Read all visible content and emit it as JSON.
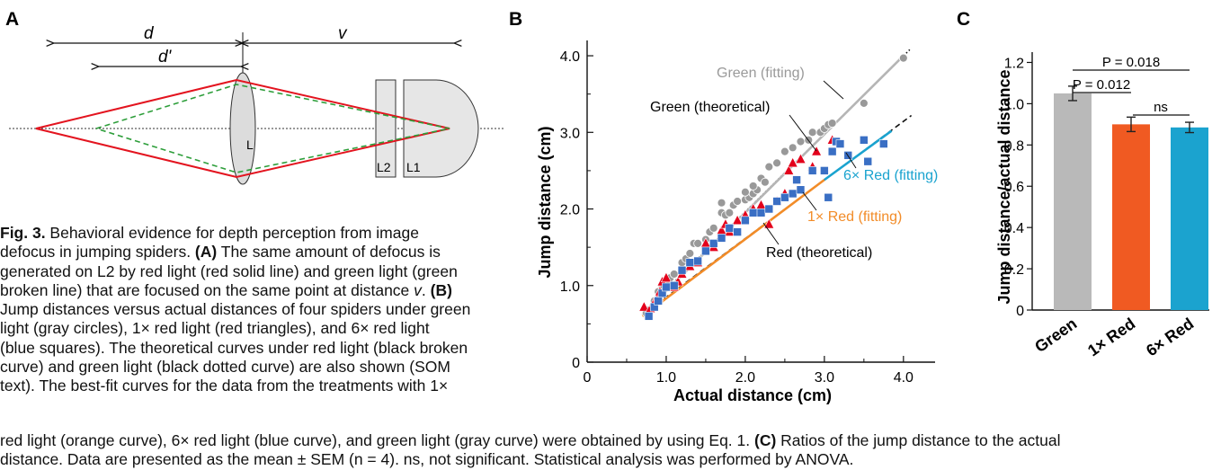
{
  "panels": {
    "a": {
      "letter": "A",
      "labels": {
        "d": "d",
        "d_prime": "d'",
        "v": "v",
        "lens_L": "L",
        "lens_L2": "L2",
        "lens_L1": "L1"
      }
    },
    "b": {
      "letter": "B",
      "annotations": {
        "green_fitting": "Green (fitting)",
        "green_theoretical": "Green (theoretical)",
        "red6_fitting": "6× Red (fitting)",
        "red1_fitting": "1× Red (fitting)",
        "red_theoretical": "Red (theoretical)"
      }
    },
    "c": {
      "letter": "C",
      "sig": {
        "p1": "P = 0.012",
        "p2": "P = 0.018",
        "ns": "ns"
      }
    }
  },
  "chart_data": [
    {
      "type": "scatter",
      "xlabel": "Actual distance (cm)",
      "ylabel": "Jump distance (cm)",
      "xlim": [
        0,
        4.4
      ],
      "ylim": [
        0,
        4.2
      ],
      "xticks": [
        "0",
        "1.0",
        "2.0",
        "3.0",
        "4.0"
      ],
      "yticks": [
        "0",
        "1.0",
        "2.0",
        "3.0",
        "4.0"
      ],
      "colors": {
        "green": "#999999",
        "red1": "#e3001b",
        "red6": "#3a6fc4",
        "theory": "#111111",
        "fit_gray": "#b5b5b5",
        "fit_orange": "#f28c28",
        "fit_blue": "#1aa3cf"
      },
      "series": [
        {
          "name": "gray circles",
          "marker": "circle",
          "color": "#999999",
          "points": [
            [
              0.75,
              0.64
            ],
            [
              0.85,
              0.8
            ],
            [
              0.9,
              0.92
            ],
            [
              0.95,
              1.0
            ],
            [
              1.0,
              1.05
            ],
            [
              1.05,
              1.1
            ],
            [
              1.1,
              1.15
            ],
            [
              1.2,
              1.3
            ],
            [
              1.25,
              1.35
            ],
            [
              1.3,
              1.42
            ],
            [
              1.35,
              1.55
            ],
            [
              1.4,
              1.55
            ],
            [
              1.5,
              1.6
            ],
            [
              1.55,
              1.7
            ],
            [
              1.6,
              1.75
            ],
            [
              1.7,
              1.95
            ],
            [
              1.75,
              1.92
            ],
            [
              1.8,
              1.95
            ],
            [
              1.7,
              2.08
            ],
            [
              1.85,
              2.05
            ],
            [
              1.9,
              2.1
            ],
            [
              2.0,
              2.12
            ],
            [
              2.05,
              2.15
            ],
            [
              2.0,
              2.22
            ],
            [
              2.1,
              2.2
            ],
            [
              2.15,
              2.25
            ],
            [
              2.1,
              2.3
            ],
            [
              2.2,
              2.4
            ],
            [
              2.25,
              2.35
            ],
            [
              2.3,
              2.55
            ],
            [
              2.4,
              2.6
            ],
            [
              2.5,
              2.75
            ],
            [
              2.6,
              2.8
            ],
            [
              2.7,
              2.88
            ],
            [
              2.8,
              2.9
            ],
            [
              2.85,
              3.0
            ],
            [
              2.95,
              3.0
            ],
            [
              3.0,
              3.05
            ],
            [
              3.05,
              3.1
            ],
            [
              3.1,
              3.12
            ],
            [
              3.5,
              3.38
            ],
            [
              4.0,
              3.97
            ]
          ]
        },
        {
          "name": "red triangles",
          "marker": "triangle",
          "color": "#e3001b",
          "points": [
            [
              0.72,
              0.72
            ],
            [
              0.8,
              0.7
            ],
            [
              0.85,
              0.78
            ],
            [
              0.9,
              0.85
            ],
            [
              0.92,
              0.92
            ],
            [
              0.95,
              1.05
            ],
            [
              1.0,
              1.1
            ],
            [
              1.1,
              0.98
            ],
            [
              1.15,
              1.05
            ],
            [
              1.2,
              1.15
            ],
            [
              1.3,
              1.25
            ],
            [
              1.4,
              1.3
            ],
            [
              1.5,
              1.55
            ],
            [
              1.6,
              1.5
            ],
            [
              1.7,
              1.72
            ],
            [
              1.75,
              1.8
            ],
            [
              1.8,
              1.7
            ],
            [
              1.9,
              1.85
            ],
            [
              2.0,
              1.92
            ],
            [
              2.1,
              2.0
            ],
            [
              2.2,
              2.05
            ],
            [
              2.3,
              1.8
            ],
            [
              2.4,
              2.1
            ],
            [
              2.5,
              2.2
            ],
            [
              2.55,
              2.5
            ],
            [
              2.6,
              2.6
            ],
            [
              2.7,
              2.65
            ],
            [
              2.85,
              2.55
            ],
            [
              2.9,
              2.75
            ],
            [
              3.1,
              2.9
            ]
          ]
        },
        {
          "name": "blue squares",
          "marker": "square",
          "color": "#3a6fc4",
          "points": [
            [
              0.78,
              0.6
            ],
            [
              0.85,
              0.72
            ],
            [
              0.9,
              0.8
            ],
            [
              0.95,
              0.9
            ],
            [
              1.0,
              0.98
            ],
            [
              1.1,
              1.0
            ],
            [
              1.2,
              1.2
            ],
            [
              1.3,
              1.3
            ],
            [
              1.4,
              1.32
            ],
            [
              1.5,
              1.45
            ],
            [
              1.6,
              1.55
            ],
            [
              1.7,
              1.62
            ],
            [
              1.8,
              1.75
            ],
            [
              1.9,
              1.7
            ],
            [
              2.0,
              1.85
            ],
            [
              2.1,
              1.95
            ],
            [
              2.2,
              1.95
            ],
            [
              2.3,
              2.0
            ],
            [
              2.4,
              2.1
            ],
            [
              2.5,
              2.15
            ],
            [
              2.6,
              2.2
            ],
            [
              2.65,
              2.38
            ],
            [
              2.7,
              2.25
            ],
            [
              2.85,
              2.5
            ],
            [
              3.0,
              2.5
            ],
            [
              3.1,
              2.75
            ],
            [
              3.15,
              2.88
            ],
            [
              3.2,
              2.85
            ],
            [
              3.3,
              2.7
            ],
            [
              3.5,
              2.9
            ],
            [
              3.55,
              2.62
            ],
            [
              3.75,
              2.85
            ],
            [
              3.05,
              2.15
            ]
          ]
        }
      ],
      "lines": [
        {
          "name": "green theoretical",
          "style": "dotted",
          "color": "#111111",
          "points": [
            [
              0.7,
              0.64
            ],
            [
              4.1,
              4.1
            ]
          ]
        },
        {
          "name": "green fitting",
          "style": "solid",
          "color": "#b5b5b5",
          "points": [
            [
              0.7,
              0.62
            ],
            [
              4.0,
              4.0
            ]
          ]
        },
        {
          "name": "red theoretical",
          "style": "dashed",
          "color": "#111111",
          "points": [
            [
              0.7,
              0.62
            ],
            [
              4.1,
              3.22
            ]
          ]
        },
        {
          "name": "1x red fitting",
          "style": "solid",
          "color": "#f28c28",
          "points": [
            [
              0.7,
              0.6
            ],
            [
              3.0,
              2.38
            ]
          ]
        },
        {
          "name": "6x red fitting",
          "style": "solid",
          "color": "#1aa3cf",
          "points": [
            [
              3.0,
              2.38
            ],
            [
              3.85,
              3.02
            ]
          ]
        }
      ]
    },
    {
      "type": "bar",
      "ylabel": "Jump distance/actual distance",
      "categories": [
        "Green",
        "1× Red",
        "6× Red"
      ],
      "values": [
        1.05,
        0.9,
        0.885
      ],
      "errors": [
        0.035,
        0.035,
        0.025
      ],
      "colors": [
        "#b9b9b9",
        "#f05a22",
        "#1ba3cf"
      ],
      "ylim": [
        0,
        1.25
      ],
      "yticks": [
        "0",
        "0.2",
        "0.4",
        "0.6",
        "0.8",
        "1.0",
        "1.2"
      ]
    }
  ],
  "caption": {
    "left_lines": [
      [
        "Fig. 3.",
        " Behavioral evidence for depth perception from image"
      ],
      [
        "",
        "defocus in jumping spiders. "
      ],
      [
        "",
        "generated on L2 by red light (red solid line) and green light (green"
      ],
      [
        "",
        "broken line) that are focused on the same point at distance "
      ],
      [
        "",
        "Jump distances versus actual distances of four spiders under green"
      ],
      [
        "",
        "light (gray circles), 1× red light (red triangles), and 6× red light"
      ],
      [
        "",
        "(blue squares). The theoretical curves under red light (black broken"
      ],
      [
        "",
        "curve) and green light (black dotted curve) are also shown (SOM"
      ],
      [
        "",
        "text). The best-fit curves for the data from the treatments with 1×"
      ]
    ],
    "line2_b": "(A)",
    "line2_rest": " The same amount of defocus is",
    "line4_v": "v",
    "line4_end": ". ",
    "line4_b": "(B)",
    "bottom_line1_a": "red light (orange curve), 6× red light (blue curve), and green light (gray curve) were obtained by using Eq. 1. ",
    "bottom_line1_b": "(C)",
    "bottom_line1_c": " Ratios of the jump distance to the actual",
    "bottom_line2": "distance. Data are presented as the mean ± SEM (n = 4). ns, not significant. Statistical analysis was performed by ANOVA."
  }
}
